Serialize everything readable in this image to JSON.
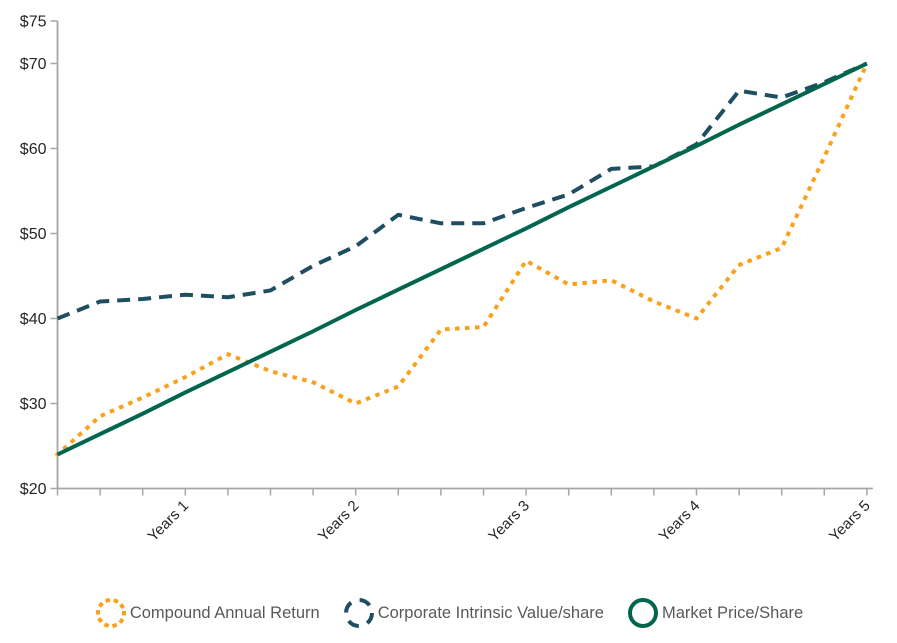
{
  "chart_data": {
    "type": "line",
    "title": "",
    "grid": false,
    "axis_color": "#A6A6A6",
    "label_color": "#262626",
    "y_axis": {
      "range": [
        20,
        75
      ],
      "ticks": [
        {
          "label": "$75",
          "value": 75
        },
        {
          "label": "$70",
          "value": 70
        },
        {
          "label": "$60",
          "value": 60
        },
        {
          "label": "$50",
          "value": 50
        },
        {
          "label": "$40",
          "value": 40
        },
        {
          "label": "$30",
          "value": 30
        },
        {
          "label": "$20",
          "value": 20
        }
      ]
    },
    "x_axis": {
      "num_points": 20,
      "unit": "quarters",
      "tick_labels": [
        {
          "index": 3,
          "label": "Years 1"
        },
        {
          "index": 7,
          "label": "Years 2"
        },
        {
          "index": 11,
          "label": "Years 3"
        },
        {
          "index": 15,
          "label": "Years 4"
        },
        {
          "index": 19,
          "label": "Years 5"
        }
      ]
    },
    "series": [
      {
        "name": "Compound Annual Return",
        "style": "dotted",
        "color": "#F9A11B",
        "values": [
          24,
          28.5,
          30.7,
          33.1,
          35.8,
          33.8,
          32.5,
          30,
          32,
          38.7,
          39,
          46.8,
          44,
          44.5,
          42,
          40,
          46.3,
          48.3,
          59,
          70
        ]
      },
      {
        "name": "Corporate Intrinsic Value/share",
        "style": "dashed",
        "color": "#1F4E63",
        "values": [
          40,
          42,
          42.3,
          42.8,
          42.5,
          43.3,
          46.2,
          48.5,
          52.2,
          51.2,
          51.2,
          53,
          54.6,
          57.6,
          57.9,
          60.5,
          66.8,
          66,
          67.8,
          70
        ]
      },
      {
        "name": "Market Price/Share",
        "style": "solid",
        "color": "#02664E",
        "values": [
          24,
          26.4,
          28.8,
          31.3,
          33.7,
          36.1,
          38.5,
          41,
          43.4,
          45.8,
          48.2,
          50.6,
          53.1,
          55.5,
          57.9,
          60.3,
          62.8,
          65.2,
          67.6,
          70
        ]
      }
    ],
    "legend": {
      "position": "bottom",
      "text_color": "#595959"
    }
  }
}
